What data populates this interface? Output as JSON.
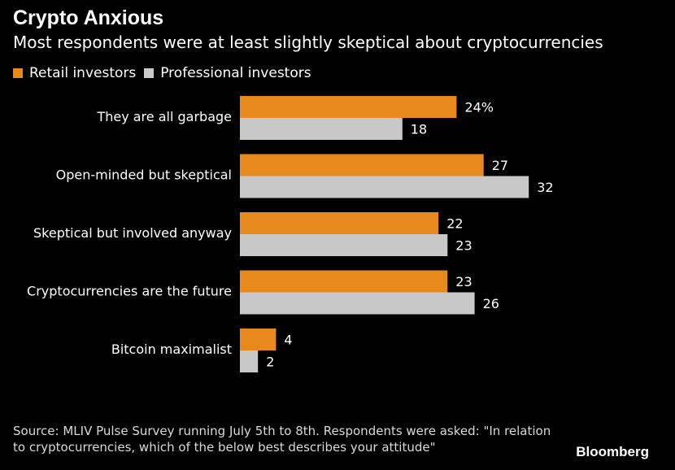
{
  "header": {
    "title": "Crypto Anxious",
    "subtitle": "Most respondents were at least slightly skeptical about cryptocurrencies"
  },
  "footer": {
    "source": "Source: MLIV Pulse Survey running July 5th to 8th. Respondents were asked: \"In relation to cryptocurrencies, which of the below best describes your attitude\"",
    "brand": "Bloomberg"
  },
  "colors": {
    "retail": "#e8891e",
    "professional": "#c8c8c8",
    "background": "#000000"
  },
  "chart_data": {
    "type": "bar",
    "orientation": "horizontal",
    "title": "Crypto Anxious",
    "subtitle": "Most respondents were at least slightly skeptical about cryptocurrencies",
    "categories": [
      "They are all garbage",
      "Open-minded but skeptical",
      "Skeptical but involved anyway",
      "Cryptocurrencies are the future",
      "Bitcoin maximalist"
    ],
    "series": [
      {
        "name": "Retail investors",
        "values": [
          24,
          27,
          22,
          23,
          4
        ],
        "color": "#e8891e"
      },
      {
        "name": "Professional investors",
        "values": [
          18,
          32,
          23,
          26,
          2
        ],
        "color": "#c8c8c8"
      }
    ],
    "value_labels": [
      [
        "24%",
        "27",
        "22",
        "23",
        "4"
      ],
      [
        "18",
        "32",
        "23",
        "26",
        "2"
      ]
    ],
    "xlim": [
      0,
      32
    ],
    "legend": "top-left",
    "grid": false
  }
}
